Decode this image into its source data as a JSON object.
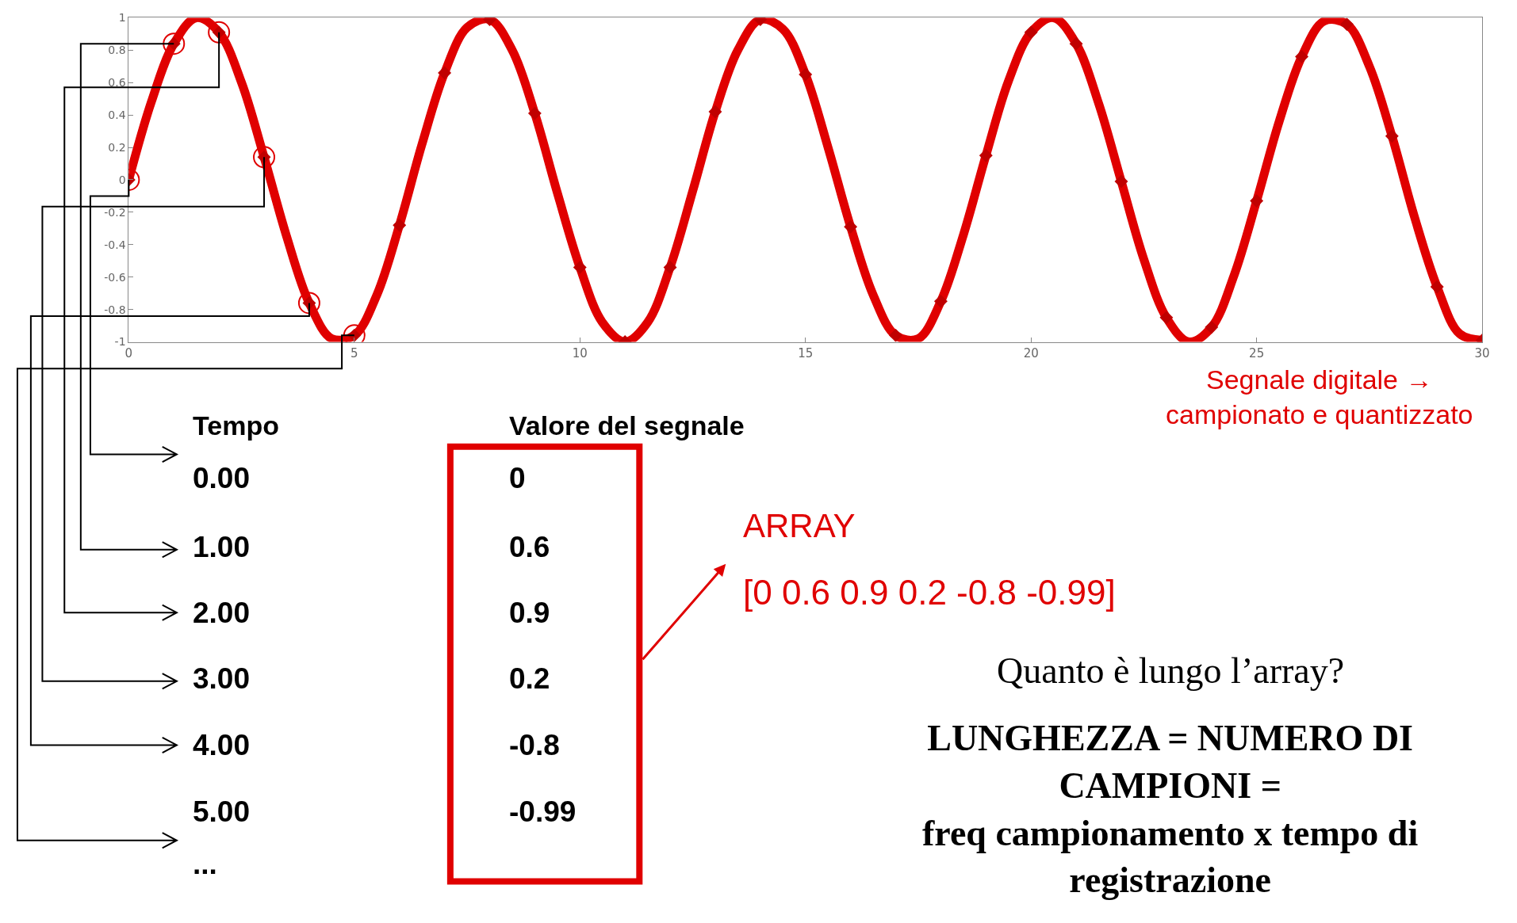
{
  "chart_data": {
    "type": "line",
    "xlim": [
      0,
      30
    ],
    "ylim": [
      -1,
      1
    ],
    "xticks": [
      0,
      5,
      10,
      15,
      20,
      25,
      30
    ],
    "yticks": [
      -1,
      -0.8,
      -0.6,
      -0.4,
      -0.2,
      0,
      0.2,
      0.4,
      0.6,
      0.8,
      1
    ],
    "series": [
      {
        "color": "#e00000",
        "marker": "none",
        "x": [
          0,
          0.5,
          1,
          1.5,
          2,
          2.5,
          3,
          3.5,
          4,
          4.5,
          5,
          5.5,
          6,
          6.5,
          7,
          7.5,
          8,
          8.5,
          9,
          9.5,
          10,
          10.5,
          11,
          11.5,
          12,
          12.5,
          13,
          13.5,
          14,
          14.5,
          15,
          15.5,
          16,
          16.5,
          17,
          17.5,
          18,
          18.5,
          19,
          19.5,
          20,
          20.5,
          21,
          21.5,
          22,
          22.5,
          23,
          23.5,
          24,
          24.5,
          25,
          25.5,
          26,
          26.5,
          27,
          27.5,
          28,
          28.5,
          29,
          29.5,
          30
        ],
        "values": [
          0,
          0.48,
          0.84,
          1.0,
          0.91,
          0.6,
          0.14,
          -0.35,
          -0.76,
          -0.98,
          -0.96,
          -0.71,
          -0.28,
          0.22,
          0.66,
          0.94,
          0.99,
          0.8,
          0.41,
          -0.08,
          -0.54,
          -0.88,
          -1.0,
          -0.88,
          -0.54,
          -0.07,
          0.42,
          0.8,
          0.99,
          0.93,
          0.65,
          0.2,
          -0.29,
          -0.71,
          -0.96,
          -0.98,
          -0.75,
          -0.34,
          0.15,
          0.61,
          0.91,
          1.0,
          0.84,
          0.47,
          -0.01,
          -0.49,
          -0.85,
          -1.0,
          -0.91,
          -0.59,
          -0.13,
          0.36,
          0.76,
          0.98,
          0.96,
          0.7,
          0.27,
          -0.23,
          -0.66,
          -0.95,
          -0.99
        ]
      },
      {
        "type": "scatter",
        "color": "#c00000",
        "marker": "diamond",
        "x": [
          0,
          1,
          2,
          3,
          4,
          5,
          6,
          7,
          8,
          9,
          10,
          11,
          12,
          13,
          14,
          15,
          16,
          17,
          18,
          19,
          20,
          21,
          22,
          23,
          24,
          25,
          26,
          27,
          28,
          29,
          30
        ],
        "values": [
          0,
          0.84,
          0.91,
          0.14,
          -0.76,
          -0.96,
          -0.28,
          0.66,
          0.99,
          0.41,
          -0.54,
          -1.0,
          -0.54,
          0.42,
          0.99,
          0.65,
          -0.29,
          -0.96,
          -0.75,
          0.15,
          0.91,
          0.84,
          -0.01,
          -0.85,
          -0.91,
          -0.13,
          0.76,
          0.96,
          0.27,
          -0.66,
          -0.99
        ]
      },
      {
        "type": "scatter",
        "color": "#e00000",
        "marker": "circle",
        "x": [
          0,
          1,
          2,
          3,
          4,
          5
        ],
        "values": [
          0,
          0.84,
          0.91,
          0.14,
          -0.76,
          -0.96
        ]
      }
    ],
    "annotations": [
      "Segnale digitale →\ncampionato e quantizzato",
      "Tempo",
      "Valore del segnale",
      {
        "text": "0.00",
        "x": 0,
        "y": 0
      },
      {
        "text": "1.00",
        "x": 1,
        "y": 0.84
      },
      {
        "text": "2.00",
        "x": 2,
        "y": 0.91
      },
      {
        "text": "3.00",
        "x": 3,
        "y": 0.14
      },
      {
        "text": "4.00",
        "x": 4,
        "y": -0.76
      },
      {
        "text": "5.00",
        "x": 5,
        "y": -0.96
      },
      "...",
      "0",
      "0.6",
      "0.9",
      "0.2",
      "-0.8",
      "-0.99",
      "ARRAY",
      "[0 0.6 0.9 0.2 -0.8 -0.99]",
      "Quanto è lungo l’array?",
      "LUNGHEZZA = NUMERO DI\nCAMPIONI =\nfreq campionamento x tempo di\nregistrazione"
    ]
  }
}
